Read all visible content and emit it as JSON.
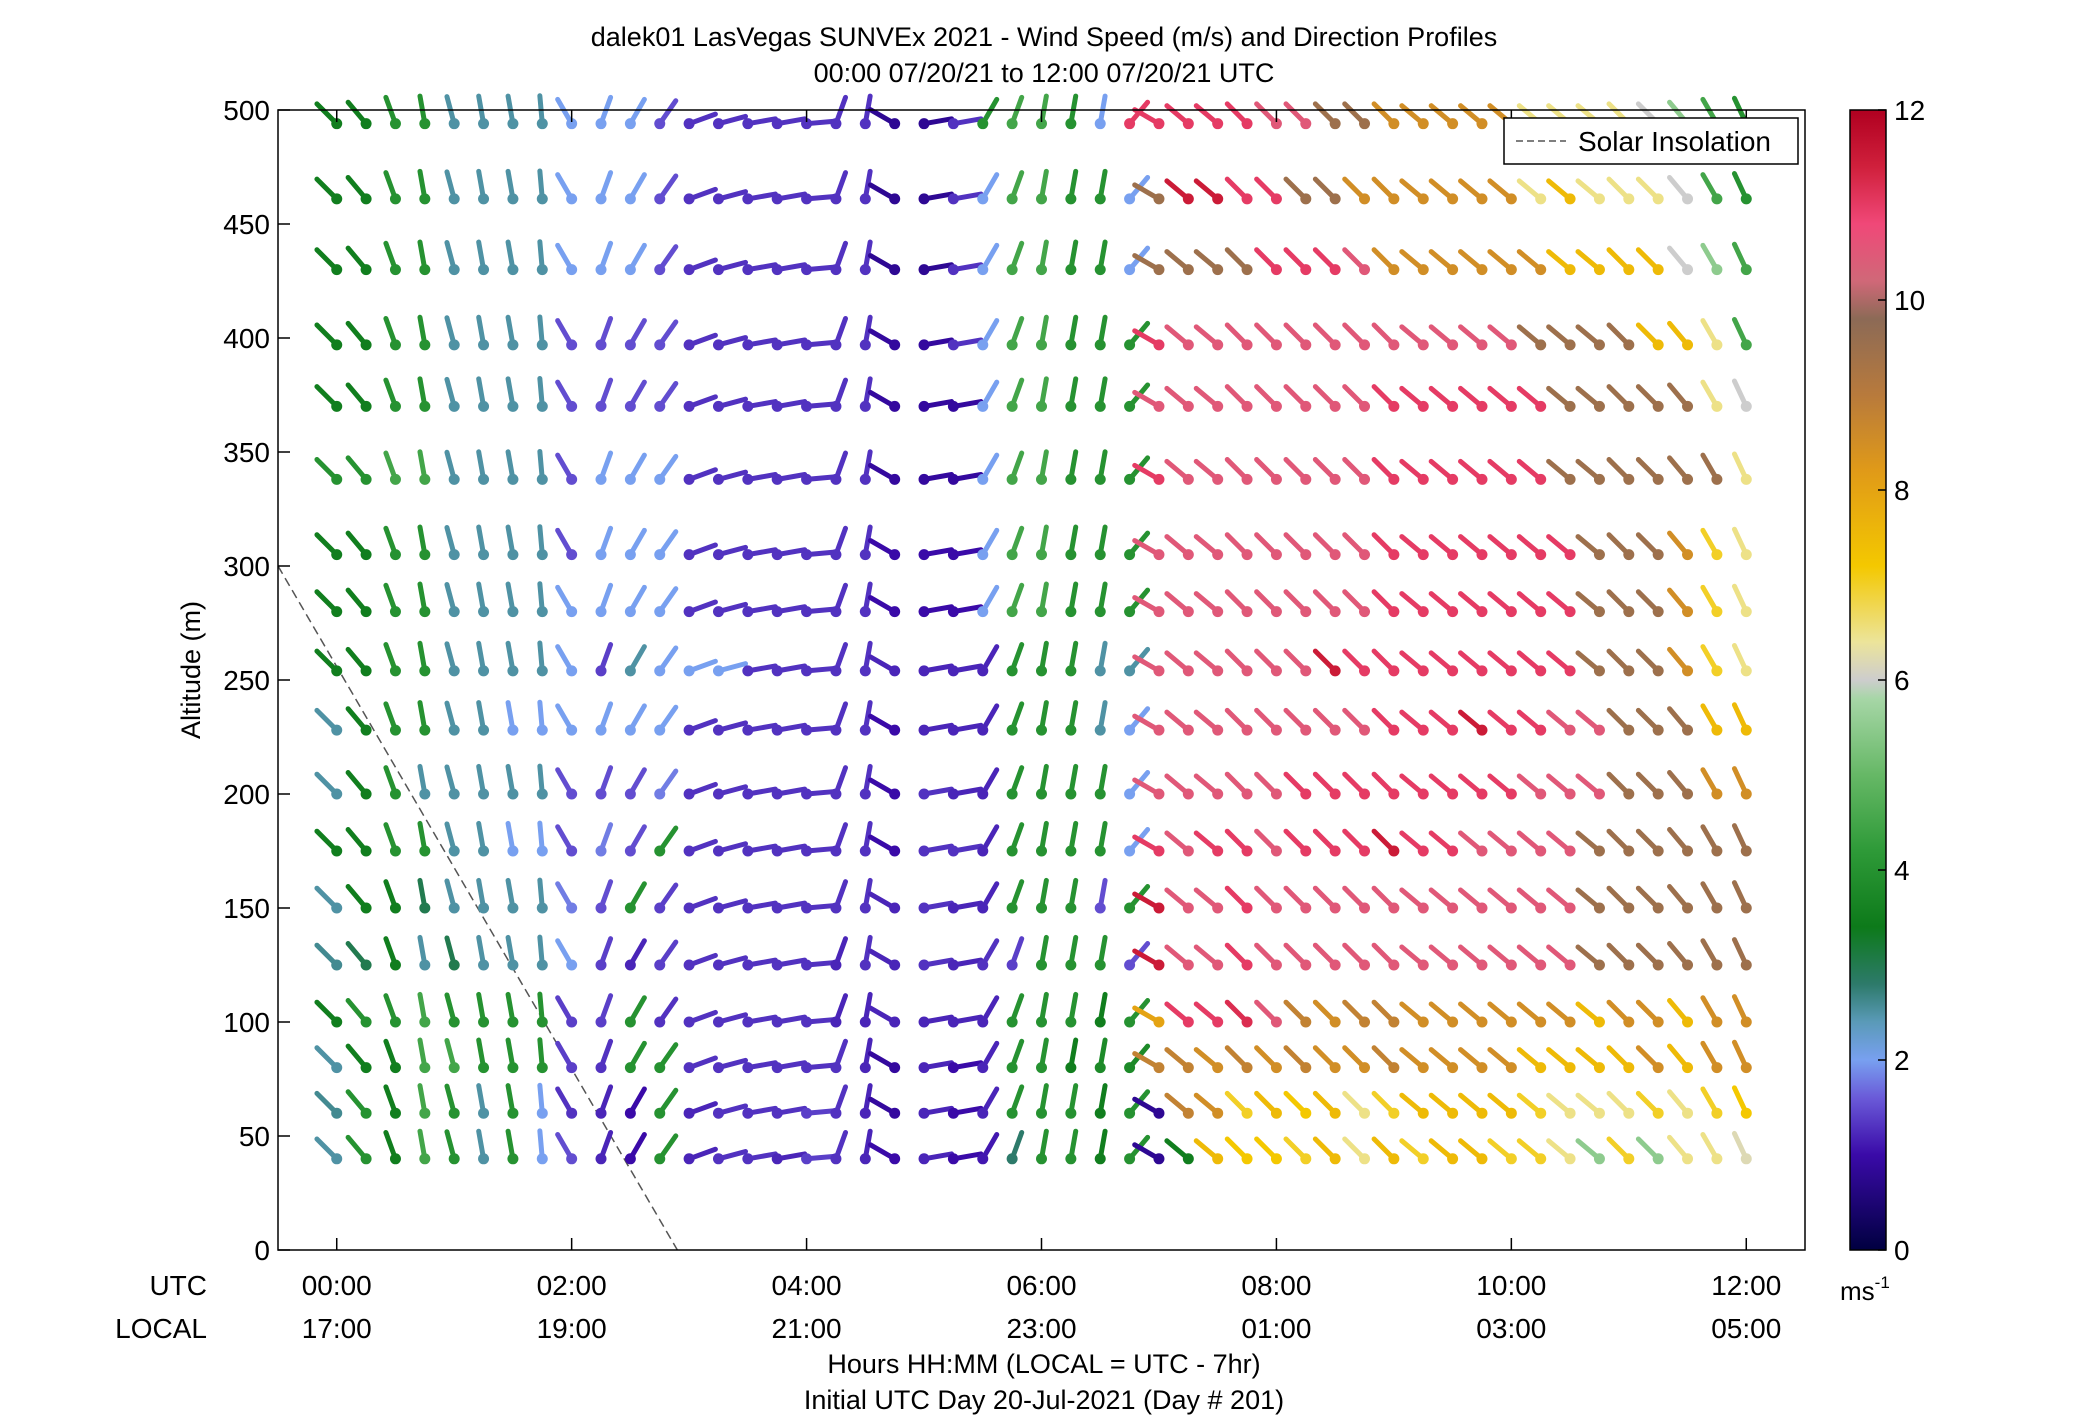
{
  "chart_data": {
    "type": "scatter",
    "title": "dalek01 LasVegas SUNVEx 2021 - Wind Speed (m/s) and Direction Profiles",
    "subtitle": "00:00 07/20/21 to 12:00 07/20/21  UTC",
    "ylabel": "Altitude (m)",
    "xlabel": "Hours HH:MM  (LOCAL = UTC - 7hr)",
    "xlabel2": "Initial UTC Day 20-Jul-2021 (Day # 201)",
    "utc_label": "UTC",
    "local_label": "LOCAL",
    "ylim": [
      0,
      500
    ],
    "yticks": [
      0,
      50,
      100,
      150,
      200,
      250,
      300,
      350,
      400,
      450,
      500
    ],
    "xticks": [
      {
        "hours": 0,
        "utc": "00:00",
        "local": "17:00"
      },
      {
        "hours": 2,
        "utc": "02:00",
        "local": "19:00"
      },
      {
        "hours": 4,
        "utc": "04:00",
        "local": "21:00"
      },
      {
        "hours": 6,
        "utc": "06:00",
        "local": "23:00"
      },
      {
        "hours": 8,
        "utc": "08:00",
        "local": "01:00"
      },
      {
        "hours": 10,
        "utc": "10:00",
        "local": "03:00"
      },
      {
        "hours": 12,
        "utc": "12:00",
        "local": "05:00"
      }
    ],
    "xlim_hours": [
      -0.5,
      12.5
    ],
    "altitudes_m": [
      40,
      60,
      80,
      100,
      125,
      150,
      175,
      200,
      228,
      254,
      280,
      305,
      338,
      370,
      397,
      430,
      461,
      494
    ],
    "times_hours": [
      0,
      0.25,
      0.5,
      0.75,
      1,
      1.25,
      1.5,
      1.75,
      2,
      2.25,
      2.5,
      2.75,
      3,
      3.25,
      3.5,
      3.75,
      4,
      4.25,
      4.5,
      4.75,
      5,
      5.25,
      5.5,
      5.75,
      6,
      6.25,
      6.5,
      6.75,
      7,
      7.25,
      7.5,
      7.75,
      8,
      8.25,
      8.5,
      8.75,
      9,
      9.25,
      9.5,
      9.75,
      10,
      10.25,
      10.5,
      10.75,
      11,
      11.25,
      11.5,
      11.75,
      12
    ],
    "speed_ms": {
      "note_rows_low_to_high": "estimated from barb colours",
      "rows": [
        [
          2.5,
          4.0,
          3.5,
          4.5,
          4.0,
          2.5,
          4.0,
          2.0,
          1.5,
          1.2,
          1.0,
          4.0,
          1.2,
          1.3,
          1.3,
          1.2,
          1.4,
          1.3,
          1.2,
          1.0,
          1.2,
          1.0,
          1.1,
          2.8,
          4.0,
          4.0,
          3.5,
          4.0,
          0.8,
          3.5,
          7.5,
          7.2,
          7.2,
          7.0,
          7.5,
          6.5,
          7.5,
          7.0,
          7.5,
          7.5,
          7.0,
          7.0,
          6.5,
          5.5,
          7.0,
          5.5,
          6.5,
          6.5,
          6.2
        ],
        [
          2.6,
          4.0,
          3.5,
          4.5,
          4.0,
          2.5,
          4.0,
          2.0,
          1.3,
          1.2,
          1.0,
          4.0,
          1.2,
          1.3,
          1.3,
          1.3,
          1.4,
          1.3,
          1.2,
          0.9,
          1.2,
          1.0,
          1.2,
          4.0,
          4.0,
          4.0,
          3.5,
          4.0,
          0.8,
          8.8,
          8.5,
          7.0,
          7.5,
          7.2,
          7.5,
          6.5,
          7.0,
          7.5,
          7.5,
          7.5,
          7.5,
          7.0,
          6.5,
          6.5,
          6.5,
          7.0,
          6.5,
          7.0,
          7.2
        ],
        [
          2.5,
          3.5,
          3.5,
          4.5,
          4.5,
          4.0,
          4.0,
          4.0,
          1.4,
          1.3,
          4.0,
          4.0,
          1.3,
          1.3,
          1.3,
          1.3,
          1.3,
          1.3,
          1.2,
          0.9,
          1.2,
          1.0,
          1.2,
          4.0,
          4.0,
          3.5,
          3.8,
          3.8,
          8.8,
          8.8,
          8.5,
          8.8,
          8.5,
          8.8,
          8.5,
          8.5,
          8.8,
          8.5,
          8.5,
          8.5,
          8.5,
          7.5,
          7.5,
          7.5,
          7.5,
          8.5,
          7.5,
          8.5,
          8.5
        ],
        [
          3.5,
          4.0,
          4.0,
          4.5,
          4.0,
          4.0,
          4.0,
          4.0,
          1.4,
          1.4,
          4.0,
          1.3,
          1.3,
          1.3,
          1.3,
          1.3,
          1.3,
          1.2,
          1.2,
          1.2,
          1.2,
          1.2,
          1.2,
          4.0,
          4.0,
          4.0,
          3.5,
          4.0,
          8.0,
          11.0,
          11.0,
          11.2,
          10.5,
          8.8,
          8.5,
          8.8,
          8.8,
          8.5,
          8.5,
          8.5,
          8.5,
          8.5,
          8.5,
          7.5,
          8.5,
          8.5,
          7.5,
          8.5,
          8.5
        ],
        [
          2.6,
          3.0,
          3.5,
          2.5,
          3.0,
          2.5,
          2.5,
          2.5,
          2.0,
          1.4,
          1.2,
          1.4,
          1.3,
          1.3,
          1.3,
          1.3,
          1.3,
          1.2,
          1.3,
          1.2,
          1.3,
          1.2,
          1.3,
          1.4,
          4.0,
          4.0,
          4.0,
          1.5,
          11.5,
          10.5,
          10.5,
          11.0,
          10.5,
          10.5,
          10.5,
          10.5,
          10.5,
          10.5,
          10.5,
          10.5,
          10.5,
          10.5,
          10.5,
          9.5,
          9.5,
          9.5,
          9.5,
          9.5,
          9.5
        ],
        [
          2.5,
          3.5,
          3.5,
          3.0,
          2.5,
          2.5,
          2.5,
          2.5,
          1.8,
          1.5,
          4.0,
          1.4,
          1.3,
          1.3,
          1.3,
          1.3,
          1.3,
          1.3,
          1.3,
          1.2,
          1.3,
          1.2,
          1.2,
          4.0,
          4.0,
          4.0,
          1.5,
          4.0,
          11.5,
          10.5,
          10.5,
          11.0,
          10.5,
          10.5,
          10.5,
          10.5,
          10.5,
          10.5,
          10.5,
          10.5,
          10.5,
          10.5,
          10.5,
          9.5,
          9.5,
          9.5,
          9.5,
          9.5,
          9.5
        ],
        [
          3.5,
          3.5,
          4.0,
          4.0,
          2.5,
          2.5,
          2.0,
          2.0,
          1.5,
          1.8,
          1.5,
          4.0,
          1.3,
          1.3,
          1.3,
          1.3,
          1.3,
          1.3,
          1.3,
          1.0,
          1.3,
          1.3,
          1.2,
          4.0,
          4.0,
          4.0,
          4.0,
          2.0,
          11.0,
          10.5,
          11.0,
          11.0,
          10.5,
          11.0,
          11.0,
          11.0,
          11.5,
          11.0,
          11.0,
          10.5,
          10.5,
          10.5,
          10.5,
          9.5,
          9.5,
          9.5,
          9.5,
          9.5,
          9.5
        ],
        [
          2.5,
          3.5,
          4.0,
          2.5,
          2.5,
          2.5,
          2.5,
          2.5,
          1.5,
          1.5,
          1.5,
          1.8,
          1.3,
          1.3,
          1.3,
          1.3,
          1.3,
          1.3,
          1.3,
          1.0,
          1.3,
          1.2,
          1.2,
          4.0,
          4.0,
          4.0,
          4.0,
          2.0,
          10.5,
          10.5,
          10.5,
          10.5,
          10.5,
          11.0,
          11.0,
          11.0,
          11.0,
          11.0,
          11.0,
          11.0,
          11.0,
          10.5,
          10.5,
          10.5,
          9.5,
          9.5,
          9.5,
          8.5,
          8.5
        ],
        [
          2.5,
          3.5,
          4.0,
          4.0,
          2.5,
          2.5,
          2.0,
          2.0,
          2.0,
          2.0,
          2.0,
          2.0,
          1.3,
          1.3,
          1.3,
          1.3,
          1.3,
          1.3,
          1.3,
          1.0,
          1.2,
          1.2,
          1.2,
          4.0,
          4.0,
          4.0,
          2.5,
          2.0,
          10.5,
          10.5,
          10.5,
          10.5,
          10.5,
          10.5,
          10.5,
          10.5,
          11.0,
          11.0,
          11.0,
          11.5,
          11.0,
          11.0,
          10.5,
          10.5,
          9.5,
          9.5,
          9.5,
          7.5,
          7.5
        ],
        [
          3.5,
          3.5,
          4.0,
          4.0,
          2.5,
          2.5,
          2.5,
          2.5,
          2.0,
          1.4,
          2.5,
          2.0,
          2.0,
          2.0,
          1.3,
          1.3,
          1.3,
          1.3,
          1.3,
          1.2,
          1.2,
          1.2,
          1.2,
          4.0,
          4.0,
          4.0,
          2.5,
          2.5,
          10.5,
          10.5,
          10.5,
          10.5,
          10.5,
          10.5,
          11.5,
          11.0,
          11.0,
          11.0,
          11.0,
          11.0,
          11.0,
          11.0,
          11.0,
          9.5,
          9.5,
          9.5,
          8.5,
          7.0,
          6.5
        ],
        [
          3.5,
          3.5,
          4.0,
          4.0,
          2.5,
          2.5,
          2.5,
          2.5,
          2.0,
          2.0,
          2.0,
          2.0,
          1.3,
          1.3,
          1.3,
          1.3,
          1.3,
          1.3,
          1.3,
          1.0,
          1.0,
          1.0,
          2.0,
          4.5,
          4.5,
          4.0,
          4.0,
          4.0,
          10.5,
          10.5,
          10.5,
          10.5,
          10.5,
          10.5,
          10.5,
          10.5,
          11.0,
          11.0,
          11.0,
          11.0,
          11.0,
          11.0,
          11.0,
          9.5,
          9.5,
          9.5,
          8.5,
          7.0,
          6.5
        ],
        [
          3.5,
          3.5,
          4.0,
          4.0,
          2.5,
          2.5,
          2.5,
          2.5,
          1.5,
          2.0,
          2.0,
          2.0,
          1.3,
          1.3,
          1.3,
          1.3,
          1.3,
          1.3,
          1.3,
          1.0,
          1.0,
          1.0,
          2.0,
          4.5,
          4.5,
          4.0,
          4.0,
          4.0,
          10.5,
          10.5,
          10.5,
          10.5,
          10.5,
          10.5,
          10.5,
          10.5,
          11.0,
          11.0,
          11.0,
          11.0,
          11.0,
          11.0,
          11.0,
          9.5,
          9.5,
          9.5,
          8.5,
          7.0,
          6.5
        ],
        [
          4.0,
          4.0,
          4.5,
          4.5,
          2.5,
          2.5,
          2.5,
          2.5,
          1.5,
          2.0,
          2.0,
          2.0,
          1.3,
          1.3,
          1.3,
          1.3,
          1.3,
          1.3,
          1.3,
          0.9,
          0.9,
          0.9,
          2.0,
          4.5,
          4.5,
          4.0,
          4.0,
          4.0,
          11.0,
          10.5,
          10.5,
          10.5,
          10.5,
          10.5,
          10.5,
          10.5,
          11.0,
          11.0,
          11.0,
          11.0,
          11.0,
          11.0,
          9.5,
          9.5,
          9.5,
          9.5,
          9.5,
          9.5,
          6.5
        ],
        [
          3.5,
          3.5,
          4.0,
          4.0,
          2.5,
          2.5,
          2.5,
          2.5,
          1.5,
          1.5,
          1.5,
          1.5,
          1.3,
          1.3,
          1.3,
          1.3,
          1.3,
          1.3,
          1.3,
          0.9,
          0.9,
          0.9,
          2.0,
          4.5,
          4.5,
          4.0,
          4.0,
          4.0,
          10.5,
          10.5,
          10.5,
          10.5,
          10.5,
          10.5,
          10.5,
          10.5,
          11.0,
          11.0,
          11.0,
          11.0,
          11.0,
          11.0,
          9.5,
          9.5,
          9.5,
          9.5,
          9.5,
          6.5,
          6.0
        ],
        [
          3.5,
          3.5,
          4.0,
          4.0,
          2.5,
          2.5,
          2.5,
          2.5,
          1.5,
          1.5,
          1.5,
          1.5,
          1.3,
          1.3,
          1.3,
          1.3,
          1.3,
          1.3,
          1.3,
          0.9,
          0.9,
          1.3,
          2.0,
          4.5,
          4.5,
          4.0,
          4.0,
          4.0,
          11.0,
          10.5,
          10.5,
          10.5,
          10.5,
          10.5,
          10.5,
          10.5,
          10.5,
          10.5,
          10.5,
          10.5,
          10.5,
          9.5,
          9.5,
          9.5,
          9.5,
          7.5,
          7.5,
          6.5,
          4.5
        ],
        [
          3.5,
          3.5,
          4.0,
          4.0,
          2.5,
          2.5,
          2.5,
          2.5,
          2.0,
          2.0,
          2.0,
          1.5,
          1.3,
          1.3,
          1.3,
          1.3,
          1.3,
          1.3,
          1.3,
          0.8,
          0.8,
          1.3,
          2.0,
          4.5,
          4.5,
          4.0,
          4.0,
          2.0,
          9.5,
          9.5,
          9.5,
          9.5,
          11.0,
          11.0,
          11.0,
          10.5,
          8.5,
          8.5,
          8.5,
          8.5,
          8.5,
          8.5,
          7.5,
          7.5,
          7.5,
          7.5,
          6.0,
          5.5,
          4.5
        ],
        [
          3.5,
          3.5,
          4.0,
          4.0,
          2.5,
          2.5,
          2.5,
          2.5,
          2.0,
          2.0,
          2.0,
          1.5,
          1.3,
          1.3,
          1.3,
          1.3,
          1.3,
          1.3,
          1.3,
          0.8,
          0.8,
          1.3,
          2.0,
          4.5,
          4.5,
          4.0,
          4.0,
          2.0,
          9.5,
          11.5,
          11.5,
          11.0,
          11.0,
          9.5,
          9.5,
          8.5,
          8.5,
          8.5,
          8.5,
          8.5,
          8.5,
          6.5,
          7.5,
          6.5,
          6.5,
          6.5,
          6.0,
          4.5,
          4.0
        ],
        [
          3.5,
          3.5,
          4.0,
          4.0,
          2.5,
          2.5,
          2.5,
          2.5,
          2.0,
          2.0,
          2.0,
          1.5,
          1.3,
          1.3,
          1.3,
          1.3,
          1.3,
          1.3,
          1.3,
          0.8,
          0.8,
          1.3,
          4.0,
          4.5,
          4.5,
          4.0,
          2.0,
          11.0,
          11.0,
          11.0,
          11.0,
          11.0,
          10.5,
          10.5,
          9.5,
          9.5,
          8.5,
          8.5,
          8.5,
          8.5,
          8.5,
          6.5,
          6.5,
          6.5,
          6.5,
          6.0,
          5.5,
          4.5,
          4.0
        ]
      ]
    },
    "direction_deg_from": {
      "note": "barb direction; estimated per time column",
      "columns_0_to_12h": [
        315,
        320,
        340,
        350,
        345,
        350,
        350,
        355,
        330,
        20,
        30,
        35,
        70,
        75,
        80,
        80,
        85,
        20,
        10,
        300,
        80,
        80,
        30,
        20,
        10,
        10,
        10,
        40,
        300,
        310,
        310,
        315,
        315,
        315,
        315,
        315,
        315,
        310,
        310,
        310,
        310,
        310,
        310,
        310,
        315,
        315,
        320,
        330,
        335
      ]
    },
    "colorbar": {
      "min": 0,
      "max": 12,
      "ticks": [
        0,
        2,
        4,
        6,
        8,
        10,
        12
      ],
      "unit_label": "ms",
      "unit_exp": "-1",
      "stops": [
        {
          "v": 0.0,
          "c": "#000040"
        },
        {
          "v": 1.0,
          "c": "#3a0aa8"
        },
        {
          "v": 1.6,
          "c": "#6a5ad8"
        },
        {
          "v": 2.0,
          "c": "#78a0f0"
        },
        {
          "v": 2.4,
          "c": "#5a9ab8"
        },
        {
          "v": 2.8,
          "c": "#2d7a6a"
        },
        {
          "v": 3.4,
          "c": "#0d7a1a"
        },
        {
          "v": 4.2,
          "c": "#2e9a38"
        },
        {
          "v": 5.0,
          "c": "#66b866"
        },
        {
          "v": 5.8,
          "c": "#a6d6a6"
        },
        {
          "v": 6.0,
          "c": "#cdcdcd"
        },
        {
          "v": 6.4,
          "c": "#ece49a"
        },
        {
          "v": 7.2,
          "c": "#f4c800"
        },
        {
          "v": 8.2,
          "c": "#e09a18"
        },
        {
          "v": 9.0,
          "c": "#b87a3c"
        },
        {
          "v": 9.8,
          "c": "#8c6a56"
        },
        {
          "v": 10.2,
          "c": "#d06878"
        },
        {
          "v": 10.8,
          "c": "#f04878"
        },
        {
          "v": 11.4,
          "c": "#d0203c"
        },
        {
          "v": 12.0,
          "c": "#b00020"
        }
      ]
    },
    "legend": {
      "label": "Solar Insolation",
      "placement": "top-right"
    },
    "solar_insolation_line": {
      "from": {
        "hours": -0.5,
        "alt_m": 300
      },
      "to": {
        "hours": 2.9,
        "alt_m": 0
      },
      "color": "#555555"
    }
  }
}
